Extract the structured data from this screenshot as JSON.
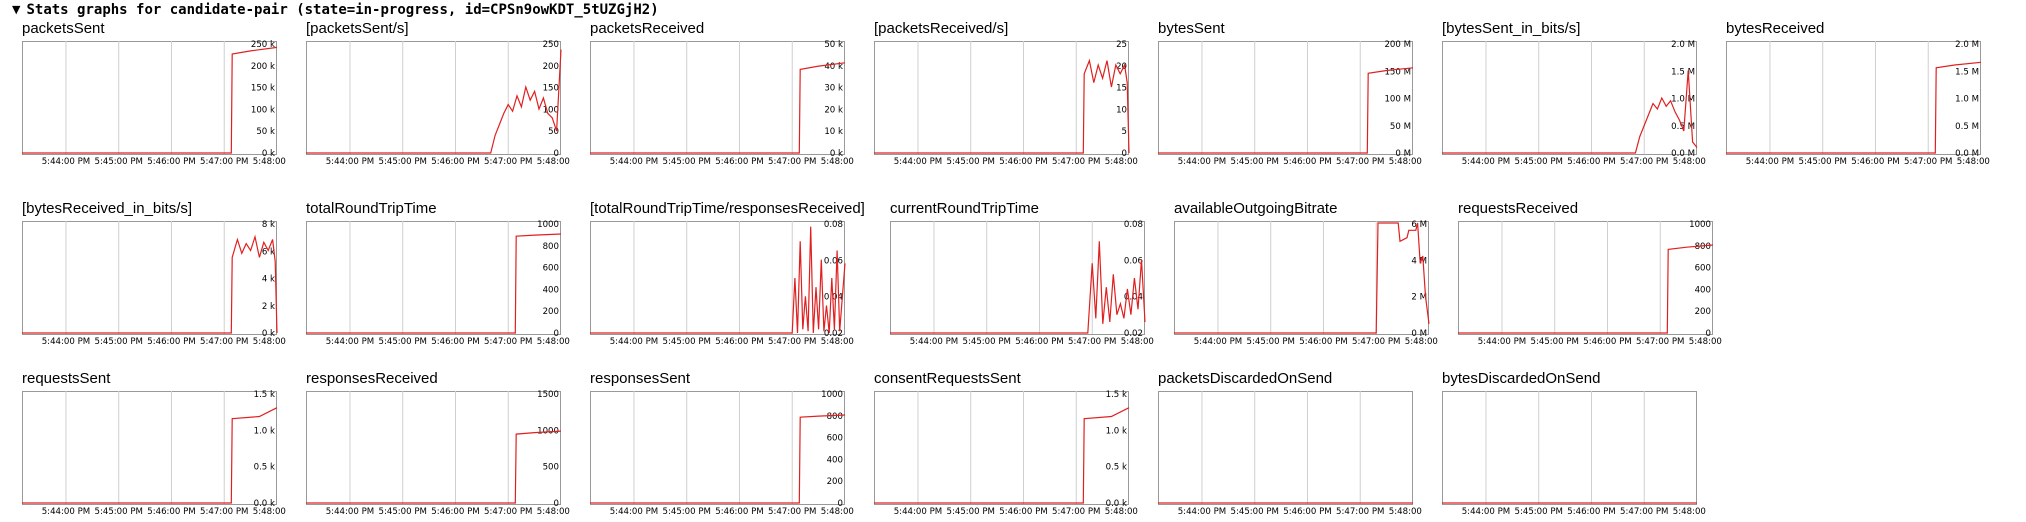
{
  "header": {
    "toggle_icon": "triangle-down-icon",
    "title": "Stats graphs for candidate-pair (state=in-progress, id=CPSn9owKDT_5tUZGjH2)"
  },
  "colors": {
    "line": "#e02020",
    "grid": "#d0d0d0",
    "frame": "#999999"
  },
  "time_labels": [
    "5:44:00 PM",
    "5:45:00 PM",
    "5:46:00 PM",
    "5:47:00 PM",
    "5:48:00 PM"
  ],
  "time_domain": [
    "5:43:10 PM",
    "5:48:00 PM"
  ],
  "chart_data": [
    {
      "type": "line",
      "title": "packetsSent",
      "yticks": [
        "250 k",
        "200 k",
        "150 k",
        "100 k",
        "50 k",
        "0 k"
      ],
      "ylim": [
        0,
        250000
      ],
      "x": [
        "5:43:10 PM",
        "5:47:08 PM",
        "5:47:09 PM",
        "5:47:30 PM",
        "5:48:00 PM"
      ],
      "values": [
        0,
        0,
        225000,
        232000,
        240000
      ]
    },
    {
      "type": "line",
      "title": "[packetsSent/s]",
      "yticks": [
        "250",
        "200",
        "150",
        "100",
        "50",
        "0"
      ],
      "ylim": [
        0,
        250
      ],
      "x": [
        "5:43:10 PM",
        "5:46:40 PM",
        "5:46:45 PM",
        "5:46:55 PM",
        "5:47:00 PM",
        "5:47:05 PM",
        "5:47:10 PM",
        "5:47:15 PM",
        "5:47:20 PM",
        "5:47:25 PM",
        "5:47:30 PM",
        "5:47:35 PM",
        "5:47:40 PM",
        "5:47:45 PM",
        "5:47:50 PM",
        "5:47:55 PM",
        "5:48:00 PM"
      ],
      "values": [
        0,
        0,
        40,
        90,
        110,
        95,
        130,
        105,
        150,
        120,
        140,
        100,
        125,
        90,
        80,
        50,
        235
      ]
    },
    {
      "type": "line",
      "title": "packetsReceived",
      "yticks": [
        "50 k",
        "40 k",
        "30 k",
        "20 k",
        "10 k",
        "0 k"
      ],
      "ylim": [
        0,
        50000
      ],
      "x": [
        "5:43:10 PM",
        "5:47:08 PM",
        "5:47:09 PM",
        "5:47:30 PM",
        "5:48:00 PM"
      ],
      "values": [
        0,
        0,
        38000,
        39500,
        41000
      ]
    },
    {
      "type": "line",
      "title": "[packetsReceived/s]",
      "yticks": [
        "25",
        "20",
        "15",
        "10",
        "5",
        "0"
      ],
      "ylim": [
        0,
        25
      ],
      "x": [
        "5:43:10 PM",
        "5:47:08 PM",
        "5:47:09 PM",
        "5:47:15 PM",
        "5:47:20 PM",
        "5:47:25 PM",
        "5:47:30 PM",
        "5:47:35 PM",
        "5:47:40 PM",
        "5:47:45 PM",
        "5:47:50 PM",
        "5:47:55 PM",
        "5:47:58 PM",
        "5:48:00 PM"
      ],
      "values": [
        0,
        0,
        18,
        21,
        16,
        20,
        17,
        21,
        15,
        20,
        18,
        20,
        16,
        0
      ]
    },
    {
      "type": "line",
      "title": "bytesSent",
      "yticks": [
        "200 M",
        "150 M",
        "100 M",
        "50 M",
        "0 M"
      ],
      "ylim": [
        0,
        200
      ],
      "x": [
        "5:43:10 PM",
        "5:47:08 PM",
        "5:47:09 PM",
        "5:47:30 PM",
        "5:48:00 PM"
      ],
      "values": [
        0,
        0,
        145,
        150,
        155
      ]
    },
    {
      "type": "line",
      "title": "[bytesSent_in_bits/s]",
      "yticks": [
        "2.0 M",
        "1.5 M",
        "1.0 M",
        "0.5 M",
        "0.0 M"
      ],
      "ylim": [
        0,
        2
      ],
      "x": [
        "5:43:10 PM",
        "5:46:50 PM",
        "5:46:55 PM",
        "5:47:00 PM",
        "5:47:05 PM",
        "5:47:10 PM",
        "5:47:15 PM",
        "5:47:20 PM",
        "5:47:25 PM",
        "5:47:30 PM",
        "5:47:35 PM",
        "5:47:40 PM",
        "5:47:45 PM",
        "5:47:50 PM",
        "5:47:55 PM",
        "5:48:00 PM"
      ],
      "values": [
        0,
        0,
        0.3,
        0.5,
        0.7,
        0.9,
        0.8,
        1.0,
        0.85,
        0.95,
        0.75,
        0.6,
        0.4,
        1.5,
        0.2,
        0.1
      ]
    },
    {
      "type": "line",
      "title": "bytesReceived",
      "yticks": [
        "2.0 M",
        "1.5 M",
        "1.0 M",
        "0.5 M",
        "0.0 M"
      ],
      "ylim": [
        0,
        2
      ],
      "x": [
        "5:43:10 PM",
        "5:47:08 PM",
        "5:47:09 PM",
        "5:47:30 PM",
        "5:48:00 PM"
      ],
      "values": [
        0,
        0,
        1.55,
        1.6,
        1.65
      ]
    },
    {
      "type": "line",
      "title": "[bytesReceived_in_bits/s]",
      "yticks": [
        "8 k",
        "6 k",
        "4 k",
        "2 k",
        "0 k"
      ],
      "ylim": [
        0,
        8
      ],
      "x": [
        "5:43:10 PM",
        "5:47:08 PM",
        "5:47:09 PM",
        "5:47:15 PM",
        "5:47:20 PM",
        "5:47:25 PM",
        "5:47:30 PM",
        "5:47:35 PM",
        "5:47:40 PM",
        "5:47:45 PM",
        "5:47:50 PM",
        "5:47:55 PM",
        "5:47:58 PM",
        "5:48:00 PM"
      ],
      "values": [
        0,
        0,
        5.5,
        6.8,
        5.8,
        6.5,
        6.0,
        7.0,
        5.5,
        6.6,
        6.0,
        6.8,
        5.2,
        0
      ]
    },
    {
      "type": "line",
      "title": "totalRoundTripTime",
      "yticks": [
        "1000",
        "800",
        "600",
        "400",
        "200",
        "0"
      ],
      "ylim": [
        0,
        1000
      ],
      "x": [
        "5:43:10 PM",
        "5:47:08 PM",
        "5:47:09 PM",
        "5:47:30 PM",
        "5:48:00 PM"
      ],
      "values": [
        0,
        0,
        880,
        890,
        900
      ]
    },
    {
      "type": "line",
      "title": "[totalRoundTripTime/responsesReceived]",
      "yticks": [
        "0.08",
        "0.06",
        "0.04",
        "0.02"
      ],
      "ylim": [
        0.02,
        0.08
      ],
      "x": [
        "5:43:10 PM",
        "5:47:00 PM",
        "5:47:03 PM",
        "5:47:06 PM",
        "5:47:09 PM",
        "5:47:12 PM",
        "5:47:15 PM",
        "5:47:18 PM",
        "5:47:21 PM",
        "5:47:24 PM",
        "5:47:27 PM",
        "5:47:30 PM",
        "5:47:33 PM",
        "5:47:36 PM",
        "5:47:39 PM",
        "5:47:42 PM",
        "5:47:45 PM",
        "5:47:48 PM",
        "5:47:51 PM",
        "5:47:54 PM",
        "5:47:57 PM",
        "5:48:00 PM"
      ],
      "values": [
        0.019,
        0.019,
        0.05,
        0.02,
        0.07,
        0.022,
        0.04,
        0.021,
        0.078,
        0.02,
        0.045,
        0.022,
        0.06,
        0.021,
        0.035,
        0.02,
        0.05,
        0.022,
        0.065,
        0.021,
        0.04,
        0.058
      ]
    },
    {
      "type": "line",
      "title": "currentRoundTripTime",
      "yticks": [
        "0.08",
        "0.06",
        "0.04",
        "0.02"
      ],
      "ylim": [
        0.02,
        0.08
      ],
      "x": [
        "5:43:10 PM",
        "5:46:55 PM",
        "5:47:00 PM",
        "5:47:04 PM",
        "5:47:08 PM",
        "5:47:12 PM",
        "5:47:16 PM",
        "5:47:20 PM",
        "5:47:24 PM",
        "5:47:28 PM",
        "5:47:32 PM",
        "5:47:36 PM",
        "5:47:40 PM",
        "5:47:44 PM",
        "5:47:48 PM",
        "5:47:52 PM",
        "5:47:56 PM",
        "5:48:00 PM"
      ],
      "values": [
        0.02,
        0.02,
        0.058,
        0.028,
        0.07,
        0.025,
        0.045,
        0.026,
        0.052,
        0.03,
        0.036,
        0.028,
        0.044,
        0.03,
        0.05,
        0.033,
        0.06,
        0.026
      ]
    },
    {
      "type": "line",
      "title": "availableOutgoingBitrate",
      "yticks": [
        "6 M",
        "4 M",
        "2 M",
        "0 M"
      ],
      "ylim": [
        0,
        6
      ],
      "x": [
        "5:43:10 PM",
        "5:47:00 PM",
        "5:47:02 PM",
        "5:47:25 PM",
        "5:47:27 PM",
        "5:47:35 PM",
        "5:47:37 PM",
        "5:47:45 PM",
        "5:47:47 PM",
        "5:47:50 PM",
        "5:47:53 PM",
        "5:47:56 PM",
        "5:48:00 PM"
      ],
      "values": [
        0,
        0,
        6,
        6,
        5,
        5.2,
        5.6,
        5.6,
        6,
        3.8,
        4.2,
        2,
        0.5
      ]
    },
    {
      "type": "line",
      "title": "requestsReceived",
      "yticks": [
        "1000",
        "800",
        "600",
        "400",
        "200",
        "0"
      ],
      "ylim": [
        0,
        1000
      ],
      "x": [
        "5:43:10 PM",
        "5:47:08 PM",
        "5:47:09 PM",
        "5:47:30 PM",
        "5:48:00 PM"
      ],
      "values": [
        0,
        0,
        760,
        780,
        800
      ]
    },
    {
      "type": "line",
      "title": "requestsSent",
      "yticks": [
        "1.5 k",
        "1.0 k",
        "0.5 k",
        "0.0 k"
      ],
      "ylim": [
        0,
        1.5
      ],
      "x": [
        "5:43:10 PM",
        "5:47:08 PM",
        "5:47:09 PM",
        "5:47:40 PM",
        "5:48:00 PM"
      ],
      "values": [
        0,
        0,
        1.15,
        1.18,
        1.3
      ]
    },
    {
      "type": "line",
      "title": "responsesReceived",
      "yticks": [
        "1500",
        "1000",
        "500",
        "0"
      ],
      "ylim": [
        0,
        1500
      ],
      "x": [
        "5:43:10 PM",
        "5:47:08 PM",
        "5:47:09 PM",
        "5:47:30 PM",
        "5:48:00 PM"
      ],
      "values": [
        0,
        0,
        940,
        960,
        980
      ]
    },
    {
      "type": "line",
      "title": "responsesSent",
      "yticks": [
        "1000",
        "800",
        "600",
        "400",
        "200",
        "0"
      ],
      "ylim": [
        0,
        1000
      ],
      "x": [
        "5:43:10 PM",
        "5:47:08 PM",
        "5:47:09 PM",
        "5:47:30 PM",
        "5:48:00 PM"
      ],
      "values": [
        0,
        0,
        780,
        790,
        800
      ]
    },
    {
      "type": "line",
      "title": "consentRequestsSent",
      "yticks": [
        "1.5 k",
        "1.0 k",
        "0.5 k",
        "0.0 k"
      ],
      "ylim": [
        0,
        1.5
      ],
      "x": [
        "5:43:10 PM",
        "5:47:08 PM",
        "5:47:09 PM",
        "5:47:40 PM",
        "5:48:00 PM"
      ],
      "values": [
        0,
        0,
        1.15,
        1.18,
        1.3
      ]
    },
    {
      "type": "line",
      "title": "packetsDiscardedOnSend",
      "yticks": [],
      "ylim": [
        0,
        1
      ],
      "x": [
        "5:43:10 PM",
        "5:48:00 PM"
      ],
      "values": [
        0,
        0
      ]
    },
    {
      "type": "line",
      "title": "bytesDiscardedOnSend",
      "yticks": [],
      "ylim": [
        0,
        1
      ],
      "x": [
        "5:43:10 PM",
        "5:48:00 PM"
      ],
      "values": [
        0,
        0
      ]
    }
  ]
}
